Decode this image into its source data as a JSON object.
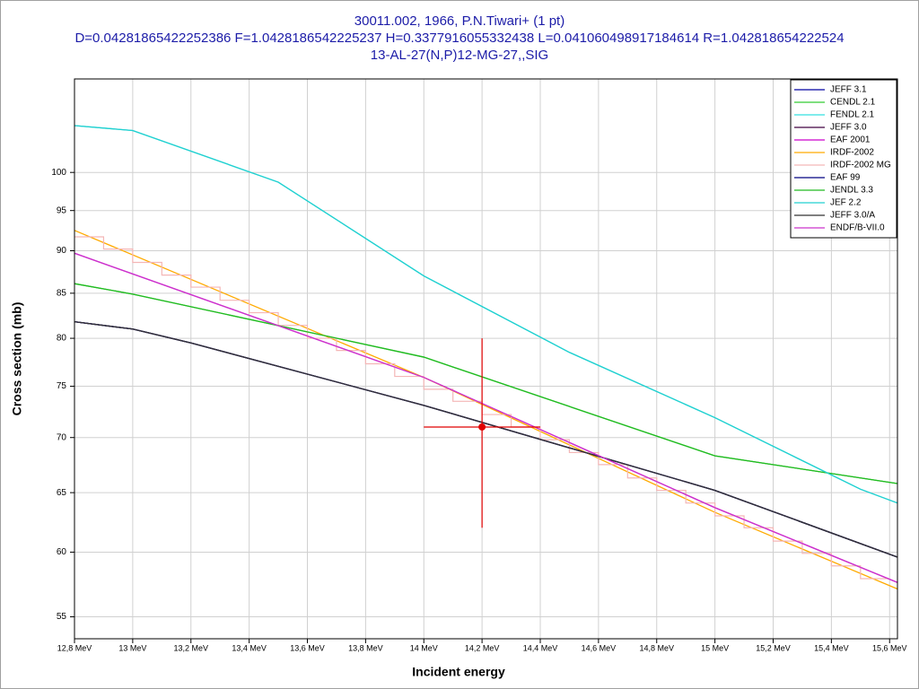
{
  "chart_data": {
    "type": "line",
    "title": "30011.002, 1966, P.N.Tiwari+ (1 pt)",
    "subtitle": "D=0.04281865422252386 F=1.0428186542225237 H=0.3377916055332438 L=0.041060498917184614 R=1.042818654222524",
    "reaction": "13-AL-27(N,P)12-MG-27,,SIG",
    "x_label": "Incident energy",
    "y_label": "Cross section (mb)",
    "log_y": true,
    "grid": true,
    "legend": "top-right",
    "xlim": [
      12.8,
      15.627
    ],
    "ylim": [
      53.4,
      113.4
    ],
    "xticks": [
      {
        "value": 12.8,
        "label": "12,8 MeV"
      },
      {
        "value": 13,
        "label": "13 MeV"
      },
      {
        "value": 13.2,
        "label": "13,2 MeV"
      },
      {
        "value": 13.4,
        "label": "13,4 MeV"
      },
      {
        "value": 13.6,
        "label": "13,6 MeV"
      },
      {
        "value": 13.8,
        "label": "13,8 MeV"
      },
      {
        "value": 14,
        "label": "14 MeV"
      },
      {
        "value": 14.2,
        "label": "14,2 MeV"
      },
      {
        "value": 14.4,
        "label": "14,4 MeV"
      },
      {
        "value": 14.6,
        "label": "14,6 MeV"
      },
      {
        "value": 14.8,
        "label": "14,8 MeV"
      },
      {
        "value": 15,
        "label": "15 MeV"
      },
      {
        "value": 15.2,
        "label": "15,2 MeV"
      },
      {
        "value": 15.4,
        "label": "15,4 MeV"
      },
      {
        "value": 15.6,
        "label": "15,6 MeV"
      }
    ],
    "yticks": [
      55,
      60,
      65,
      70,
      75,
      80,
      85,
      90,
      95,
      100
    ],
    "series": [
      {
        "name": "JEFF 3.1",
        "color": "#0000a0",
        "x": [
          12.8,
          13,
          13.2,
          14,
          15,
          15.627
        ],
        "values": [
          81.8,
          81.0,
          79.5,
          73.1,
          65.2,
          59.6
        ]
      },
      {
        "name": "CENDL 2.1",
        "color": "#33cc33",
        "x": [
          12.8,
          13,
          14,
          15,
          15.627
        ],
        "values": [
          86.1,
          84.9,
          78.0,
          68.3,
          65.8
        ]
      },
      {
        "name": "FENDL 2.1",
        "color": "#33e0e0",
        "x": [
          12.8,
          13,
          13.5,
          14,
          14.5,
          15,
          15.5,
          15.627
        ],
        "values": [
          106.5,
          105.8,
          98.7,
          87.0,
          78.5,
          71.9,
          65.3,
          64.1
        ]
      },
      {
        "name": "JEFF 3.0",
        "color": "#400040",
        "x": [
          12.8,
          13,
          13.2,
          14,
          15,
          15.627
        ],
        "values": [
          81.8,
          81.0,
          79.5,
          73.1,
          65.2,
          59.6
        ]
      },
      {
        "name": "EAF 2001",
        "color": "#cc00cc",
        "x": [
          12.8,
          14,
          15,
          15.627
        ],
        "values": [
          89.7,
          75.9,
          63.7,
          57.6
        ]
      },
      {
        "name": "IRDF-2002",
        "color": "#ffaa00",
        "x": [
          12.8,
          14,
          15,
          15.627
        ],
        "values": [
          92.5,
          75.9,
          63.3,
          57.1
        ]
      },
      {
        "name": "IRDF-2002 MG",
        "color": "#f4b6b6",
        "bins": [
          12.8,
          12.9,
          13,
          13.1,
          13.2,
          13.3,
          13.4,
          13.5,
          13.6,
          13.7,
          13.8,
          13.9,
          14,
          14.1,
          14.2,
          14.3,
          14.4,
          14.5,
          14.6,
          14.7,
          14.8,
          14.9,
          15,
          15.1,
          15.2,
          15.3,
          15.4,
          15.5,
          15.6
        ],
        "values": [
          91.7,
          90.2,
          88.6,
          87.1,
          85.7,
          84.2,
          82.8,
          81.4,
          80.0,
          78.7,
          77.3,
          76.0,
          74.7,
          73.5,
          72.2,
          71.0,
          69.8,
          68.6,
          67.5,
          66.3,
          65.2,
          64.1,
          63.0,
          62.0,
          60.9,
          59.9,
          58.9,
          57.9
        ]
      },
      {
        "name": "EAF 99",
        "color": "#000080",
        "x": [
          12.8,
          13,
          13.2,
          14,
          15,
          15.627
        ],
        "values": [
          81.8,
          81.0,
          79.5,
          73.1,
          65.2,
          59.6
        ]
      },
      {
        "name": "JENDL 3.3",
        "color": "#22bb22",
        "x": [
          12.8,
          13,
          14,
          15,
          15.627
        ],
        "values": [
          86.1,
          84.9,
          78.0,
          68.3,
          65.8
        ]
      },
      {
        "name": "JEF 2.2",
        "color": "#22d0d0",
        "x": [
          12.8,
          13,
          13.5,
          14,
          14.5,
          15,
          15.5,
          15.627
        ],
        "values": [
          106.5,
          105.8,
          98.7,
          87.0,
          78.5,
          71.9,
          65.3,
          64.1
        ]
      },
      {
        "name": "JEFF 3.0/A",
        "color": "#333333",
        "x": [
          12.8,
          13,
          13.2,
          14,
          15,
          15.627
        ],
        "values": [
          81.8,
          81.0,
          79.5,
          73.1,
          65.2,
          59.6
        ]
      },
      {
        "name": "ENDF/B-VII.0",
        "color": "#cc33cc",
        "x": [
          12.8,
          14,
          15,
          15.627
        ],
        "values": [
          89.7,
          75.9,
          63.7,
          57.6
        ]
      }
    ],
    "experiment": {
      "color": "#e00000",
      "x": [
        14.2
      ],
      "values": [
        71.0
      ],
      "xerr": [
        0.2
      ],
      "yerr": [
        9
      ]
    }
  }
}
